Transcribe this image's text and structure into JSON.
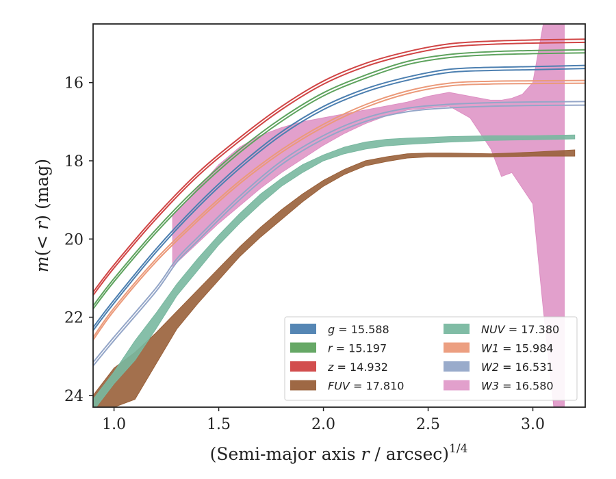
{
  "chart_data": {
    "type": "line",
    "xlabel": "(Semi-major axis r / arcsec)",
    "xlabel_power": "1/4",
    "ylabel": "m(< r) (mag)",
    "xlim": [
      0.9,
      3.25
    ],
    "ylim": [
      24.3,
      14.5
    ],
    "y_inverted": true,
    "x_ticks": [
      1.0,
      1.5,
      2.0,
      2.5,
      3.0
    ],
    "x_tick_labels": [
      "1.0",
      "1.5",
      "2.0",
      "2.5",
      "3.0"
    ],
    "y_ticks": [
      16,
      18,
      20,
      22,
      24
    ],
    "y_tick_labels": [
      "16",
      "18",
      "20",
      "22",
      "24"
    ],
    "legend_position": "lower-right",
    "legend_columns": 2,
    "series": [
      {
        "name": "g = 15.588",
        "label_var": "g",
        "label_value": "15.588",
        "color": "#4c7fb0",
        "type": "line",
        "x": [
          0.9,
          1.0,
          1.2,
          1.4,
          1.6,
          1.8,
          2.0,
          2.2,
          2.4,
          2.6,
          2.8,
          3.0,
          3.25
        ],
        "y": [
          22.3,
          21.6,
          20.3,
          19.15,
          18.15,
          17.3,
          16.65,
          16.2,
          15.9,
          15.7,
          15.65,
          15.63,
          15.6
        ],
        "width": 0.08
      },
      {
        "name": "r = 15.197",
        "label_var": "r",
        "label_value": "15.197",
        "color": "#5ea35e",
        "type": "line",
        "x": [
          0.9,
          1.0,
          1.2,
          1.4,
          1.6,
          1.8,
          2.0,
          2.2,
          2.4,
          2.6,
          2.8,
          3.0,
          3.25
        ],
        "y": [
          21.75,
          21.05,
          19.8,
          18.7,
          17.75,
          16.95,
          16.3,
          15.85,
          15.5,
          15.32,
          15.25,
          15.22,
          15.2
        ],
        "width": 0.08
      },
      {
        "name": "z = 14.932",
        "label_var": "z",
        "label_value": "14.932",
        "color": "#d04545",
        "type": "line",
        "x": [
          0.9,
          1.0,
          1.2,
          1.4,
          1.6,
          1.8,
          2.0,
          2.2,
          2.4,
          2.6,
          2.8,
          3.0,
          3.25
        ],
        "y": [
          21.4,
          20.7,
          19.45,
          18.35,
          17.45,
          16.65,
          16.0,
          15.55,
          15.25,
          15.05,
          14.98,
          14.95,
          14.93
        ],
        "width": 0.08
      },
      {
        "name": "FUV = 17.810",
        "label_var": "FUV",
        "label_value": "17.810",
        "color": "#99603a",
        "type": "band",
        "x": [
          0.9,
          1.0,
          1.1,
          1.2,
          1.3,
          1.4,
          1.5,
          1.6,
          1.7,
          1.8,
          1.9,
          2.0,
          2.1,
          2.2,
          2.3,
          2.4,
          2.5,
          2.6,
          2.8,
          3.0,
          3.2
        ],
        "y_upper": [
          24.0,
          23.3,
          22.9,
          22.4,
          21.85,
          21.3,
          20.75,
          20.2,
          19.7,
          19.25,
          18.85,
          18.5,
          18.22,
          18.0,
          17.9,
          17.82,
          17.8,
          17.8,
          17.82,
          17.78,
          17.72
        ],
        "y_lower": [
          24.6,
          24.3,
          24.1,
          23.2,
          22.3,
          21.65,
          21.05,
          20.45,
          19.95,
          19.5,
          19.05,
          18.65,
          18.35,
          18.13,
          18.02,
          17.93,
          17.9,
          17.9,
          17.9,
          17.88,
          17.88
        ]
      },
      {
        "name": "NUV = 17.380",
        "label_var": "NUV",
        "label_value": "17.380",
        "color": "#79b8a0",
        "type": "band",
        "x": [
          0.9,
          1.0,
          1.1,
          1.2,
          1.3,
          1.4,
          1.5,
          1.6,
          1.7,
          1.8,
          1.9,
          2.0,
          2.1,
          2.2,
          2.3,
          2.4,
          2.5,
          2.6,
          2.8,
          3.0,
          3.2
        ],
        "y_upper": [
          24.1,
          23.4,
          22.6,
          21.9,
          21.15,
          20.5,
          19.9,
          19.35,
          18.85,
          18.45,
          18.1,
          17.85,
          17.65,
          17.52,
          17.45,
          17.42,
          17.4,
          17.38,
          17.36,
          17.36,
          17.34
        ],
        "y_lower": [
          24.4,
          23.7,
          23.1,
          22.3,
          21.45,
          20.8,
          20.15,
          19.6,
          19.1,
          18.65,
          18.3,
          18.0,
          17.82,
          17.7,
          17.62,
          17.58,
          17.55,
          17.52,
          17.48,
          17.46,
          17.44
        ]
      },
      {
        "name": "W1 = 15.984",
        "label_var": "W1",
        "label_value": "15.984",
        "color": "#eb9a7a",
        "type": "line",
        "x": [
          0.9,
          1.0,
          1.2,
          1.4,
          1.6,
          1.8,
          2.0,
          2.2,
          2.4,
          2.6,
          2.8,
          3.0,
          3.25
        ],
        "y": [
          22.55,
          21.8,
          20.55,
          19.5,
          18.55,
          17.75,
          17.1,
          16.6,
          16.25,
          16.05,
          16.0,
          15.99,
          15.98
        ],
        "width": 0.07
      },
      {
        "name": "W2 = 16.531",
        "label_var": "W2",
        "label_value": "16.531",
        "color": "#94a6c8",
        "type": "line",
        "x": [
          0.9,
          1.0,
          1.2,
          1.3,
          1.4,
          1.6,
          1.8,
          2.0,
          2.2,
          2.4,
          2.6,
          2.8,
          3.0,
          3.25
        ],
        "y": [
          23.2,
          22.55,
          21.3,
          20.55,
          20.0,
          18.95,
          18.05,
          17.4,
          16.95,
          16.7,
          16.6,
          16.56,
          16.54,
          16.53
        ],
        "width": 0.09
      },
      {
        "name": "W3 = 16.580",
        "label_var": "W3",
        "label_value": "16.580",
        "color": "#dd8fc3",
        "type": "band",
        "x": [
          1.28,
          1.4,
          1.5,
          1.6,
          1.7,
          1.8,
          1.9,
          2.0,
          2.1,
          2.2,
          2.3,
          2.4,
          2.5,
          2.6,
          2.7,
          2.8,
          2.85,
          2.9,
          2.95,
          3.0,
          3.05,
          3.1,
          3.15
        ],
        "y_upper": [
          19.4,
          18.7,
          18.1,
          17.65,
          17.35,
          17.15,
          17.0,
          16.9,
          16.8,
          16.7,
          16.6,
          16.5,
          16.35,
          16.25,
          16.35,
          16.45,
          16.45,
          16.4,
          16.3,
          16.0,
          14.5,
          14.5,
          14.5
        ],
        "y_lower": [
          20.7,
          20.1,
          19.6,
          19.15,
          18.7,
          18.3,
          17.95,
          17.6,
          17.3,
          17.05,
          16.85,
          16.7,
          16.65,
          16.6,
          16.9,
          17.7,
          18.4,
          18.3,
          18.7,
          19.1,
          21.8,
          24.3,
          24.3
        ]
      }
    ]
  }
}
